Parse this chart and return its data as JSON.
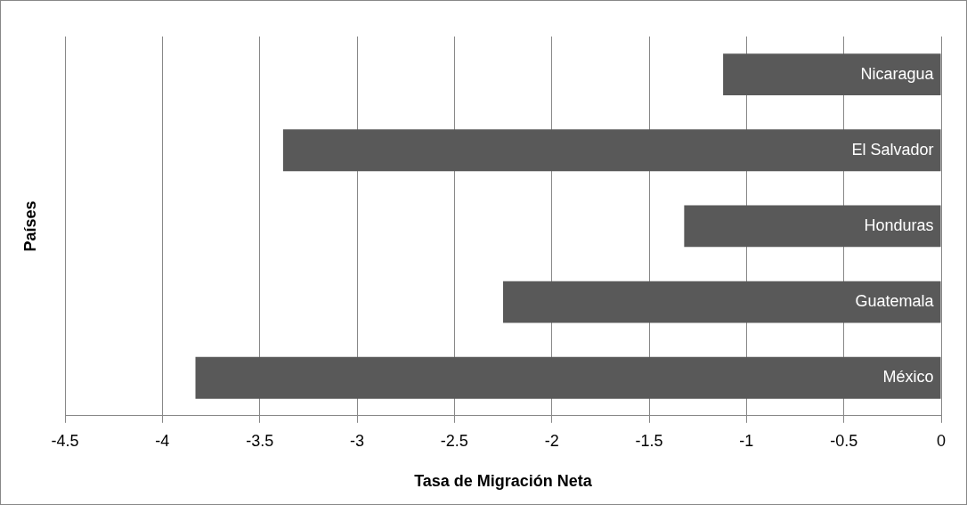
{
  "chart_data": {
    "type": "bar",
    "orientation": "horizontal",
    "categories": [
      "Nicaragua",
      "El Salvador",
      "Honduras",
      "Guatemala",
      "México"
    ],
    "values": [
      -1.12,
      -3.38,
      -1.32,
      -2.25,
      -3.83
    ],
    "color": "#595959",
    "xlabel": "Tasa de Migración Neta",
    "ylabel": "Países",
    "xlim": [
      -4.5,
      0
    ],
    "xticks": [
      -4.5,
      -4,
      -3.5,
      -3,
      -2.5,
      -2,
      -1.5,
      -1,
      -0.5,
      0
    ],
    "grid": "x",
    "legend": false
  }
}
